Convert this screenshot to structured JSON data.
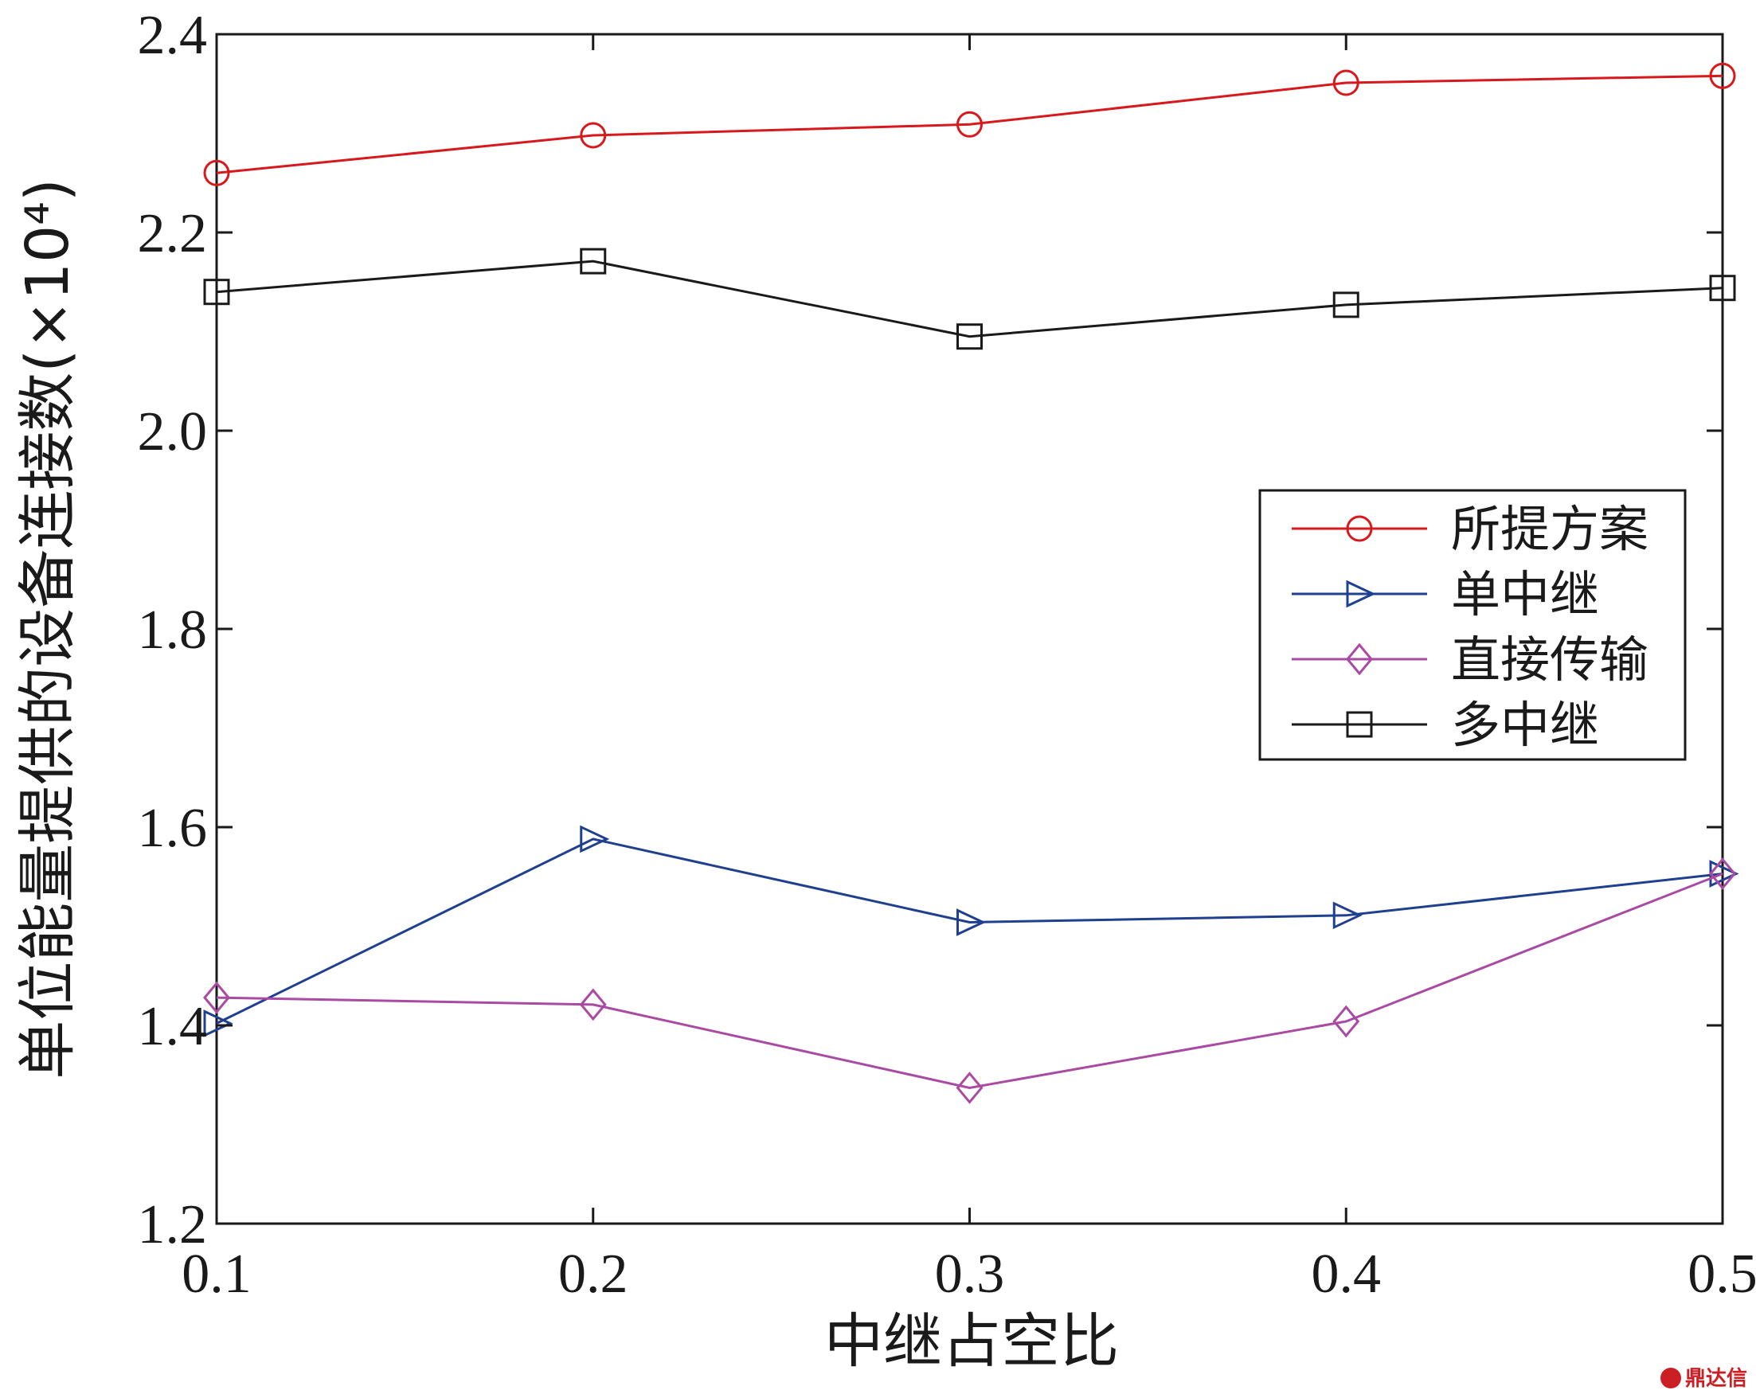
{
  "chart_data": {
    "type": "line",
    "title": "",
    "xlabel": "中继占空比",
    "ylabel": "单位能量提供的设备连接数(×10⁴)",
    "x": [
      0.1,
      0.2,
      0.3,
      0.4,
      0.5
    ],
    "x_tick_labels": [
      "0.1",
      "0.2",
      "0.3",
      "0.4",
      "0.5"
    ],
    "xlim": [
      0.1,
      0.5
    ],
    "ylim": [
      1.2,
      2.4
    ],
    "y_ticks": [
      1.2,
      1.4,
      1.6,
      1.8,
      2.0,
      2.2,
      2.4
    ],
    "y_tick_labels": [
      "1.2",
      "1.4",
      "1.6",
      "1.8",
      "2.0",
      "2.2",
      "2.4"
    ],
    "grid": false,
    "legend_position": "center-right",
    "series": [
      {
        "name": "所提方案",
        "color": "#d7191c",
        "marker": "circle",
        "values": [
          2.26,
          2.298,
          2.309,
          2.351,
          2.358
        ]
      },
      {
        "name": "单中继",
        "color": "#1f3f8f",
        "marker": "triangle-right",
        "values": [
          1.402,
          1.588,
          1.504,
          1.511,
          1.553
        ]
      },
      {
        "name": "直接传输",
        "color": "#a94aa3",
        "marker": "diamond",
        "values": [
          1.428,
          1.421,
          1.337,
          1.404,
          1.553
        ]
      },
      {
        "name": "多中继",
        "color": "#1a1a1a",
        "marker": "square",
        "values": [
          2.14,
          2.171,
          2.095,
          2.127,
          2.144
        ]
      }
    ]
  },
  "watermark": {
    "text": "鼎达信",
    "color": "#cc1f24"
  }
}
